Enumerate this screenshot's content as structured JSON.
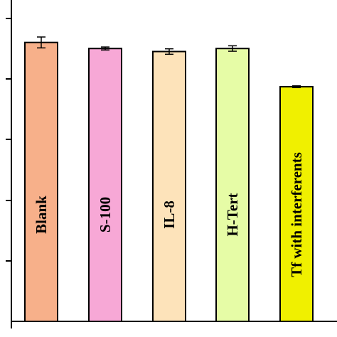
{
  "chart_data": {
    "type": "bar",
    "categories": [
      "Blank",
      "S-100",
      "IL-8",
      "H-Tert",
      "Tf with interferents"
    ],
    "values": [
      4.6,
      4.5,
      4.45,
      4.5,
      3.87
    ],
    "errors": [
      0.09,
      0.025,
      0.045,
      0.045,
      0.015
    ],
    "colors": [
      "#F7B08A",
      "#F7A8D6",
      "#FDE3BA",
      "#E6FCA6",
      "#F0F000"
    ],
    "ylim": [
      0,
      5.3
    ],
    "title": "",
    "xlabel": "",
    "ylabel": "",
    "grid": false,
    "legend": "none",
    "label_placement": "inside-bar-vertical"
  }
}
